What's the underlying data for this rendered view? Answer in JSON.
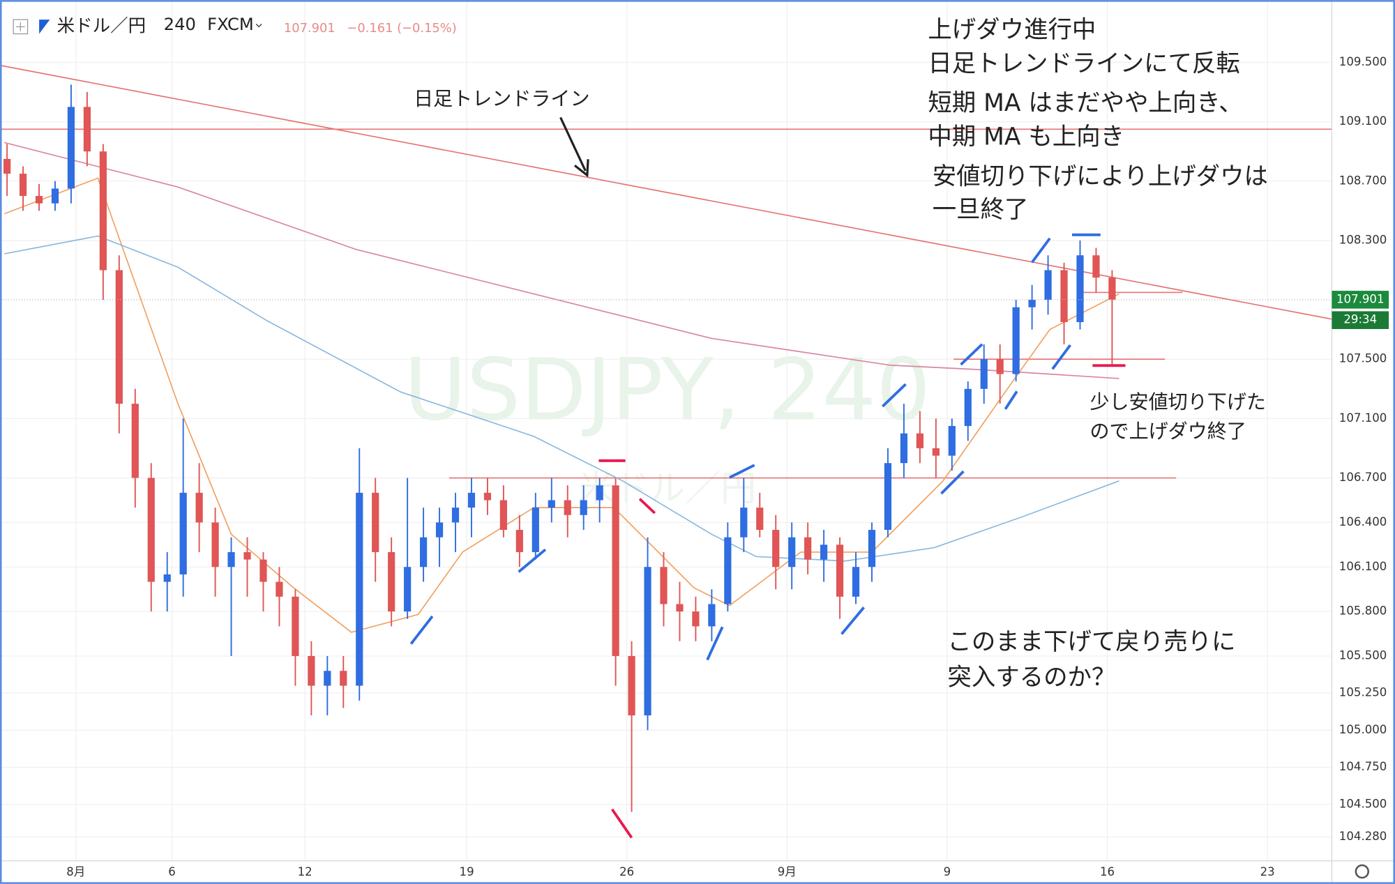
{
  "chart_data": {
    "type": "candlestick",
    "header": {
      "symbol": "米ドル／円",
      "interval": "240",
      "exchange": "FXCM",
      "price": "107.901",
      "change": "−0.161 (−0.15%)"
    },
    "watermark": {
      "main": "USDJPY, 240",
      "sub": "米ドル／円"
    },
    "up_color": "#2f6de1",
    "down_color": "#e05555",
    "open": [
      108.85,
      108.75,
      108.6,
      108.55,
      108.65,
      109.2,
      108.9,
      108.1,
      107.2,
      106.7,
      106.0,
      106.05,
      106.6,
      106.4,
      106.1,
      106.2,
      106.15,
      106.0,
      105.9,
      105.5,
      105.3,
      105.4,
      105.3,
      106.6,
      106.2,
      105.8,
      106.1,
      106.3,
      106.4,
      106.5,
      106.6,
      106.55,
      106.35,
      106.2,
      106.5,
      106.55,
      106.45,
      106.55,
      106.65,
      105.5,
      105.1,
      106.1,
      105.85,
      105.8,
      105.7,
      105.85,
      106.3,
      106.5,
      106.35,
      106.1,
      106.3,
      106.15,
      106.25,
      105.9,
      106.1,
      106.35,
      106.8,
      107.0,
      106.9,
      106.85,
      107.05,
      107.3,
      107.5,
      107.4,
      107.85,
      107.9,
      108.1,
      107.75,
      108.2,
      108.05
    ],
    "high": [
      108.95,
      108.8,
      108.68,
      108.7,
      109.35,
      109.3,
      108.95,
      108.2,
      107.3,
      106.8,
      106.2,
      107.1,
      106.8,
      106.5,
      106.3,
      106.3,
      106.2,
      106.1,
      105.95,
      105.6,
      105.5,
      105.5,
      106.9,
      106.7,
      106.3,
      106.7,
      106.5,
      106.5,
      106.6,
      106.7,
      106.7,
      106.65,
      106.45,
      106.6,
      106.7,
      106.65,
      106.65,
      106.7,
      106.7,
      105.6,
      106.3,
      106.2,
      106.0,
      105.9,
      105.95,
      106.4,
      106.7,
      106.6,
      106.45,
      106.4,
      106.4,
      106.35,
      106.3,
      106.2,
      106.4,
      106.9,
      107.2,
      107.15,
      107.1,
      107.1,
      107.35,
      107.6,
      107.6,
      107.9,
      108.0,
      108.2,
      108.15,
      108.3,
      108.25,
      108.1
    ],
    "low": [
      108.6,
      108.5,
      108.5,
      108.5,
      108.55,
      108.8,
      107.9,
      107.0,
      106.5,
      105.8,
      105.8,
      105.9,
      106.2,
      105.9,
      105.5,
      105.9,
      105.8,
      105.7,
      105.3,
      105.1,
      105.1,
      105.15,
      105.2,
      106.0,
      105.7,
      105.75,
      106.0,
      106.1,
      106.2,
      106.3,
      106.45,
      106.3,
      106.1,
      106.15,
      106.4,
      106.3,
      106.35,
      106.4,
      105.3,
      104.45,
      105.0,
      105.7,
      105.6,
      105.6,
      105.6,
      105.8,
      106.2,
      106.3,
      105.95,
      105.95,
      106.05,
      106.0,
      105.75,
      105.85,
      106.0,
      106.3,
      106.7,
      106.8,
      106.7,
      106.75,
      106.95,
      107.2,
      107.2,
      107.35,
      107.7,
      107.8,
      107.6,
      107.7,
      107.95,
      107.45
    ],
    "close": [
      108.75,
      108.6,
      108.55,
      108.65,
      109.2,
      108.9,
      108.1,
      107.2,
      106.7,
      106.0,
      106.05,
      106.6,
      106.4,
      106.1,
      106.2,
      106.15,
      106.0,
      105.9,
      105.5,
      105.3,
      105.4,
      105.3,
      106.6,
      106.2,
      105.8,
      106.1,
      106.3,
      106.4,
      106.5,
      106.6,
      106.55,
      106.35,
      106.2,
      106.5,
      106.55,
      106.45,
      106.55,
      106.65,
      105.5,
      105.1,
      106.1,
      105.85,
      105.8,
      105.7,
      105.85,
      106.3,
      106.5,
      106.35,
      106.1,
      106.3,
      106.15,
      106.25,
      105.9,
      106.1,
      106.35,
      106.8,
      107.0,
      106.9,
      106.85,
      107.05,
      107.3,
      107.5,
      107.4,
      107.85,
      107.9,
      108.1,
      107.75,
      108.2,
      108.05,
      107.901
    ],
    "series": [
      {
        "color": "#f0a060",
        "x": [
          -0.17,
          5.67,
          10.67,
          14,
          17.89,
          21.5,
          25.67,
          28.44,
          32.89,
          37.89,
          42.89,
          45.11,
          49.56,
          54,
          58.44,
          62.33,
          65.11,
          69.44
        ],
        "values": [
          108.48,
          108.72,
          107.2,
          106.32,
          105.96,
          105.66,
          105.78,
          106.2,
          106.5,
          106.5,
          105.96,
          105.84,
          106.2,
          106.2,
          106.68,
          107.28,
          107.7,
          107.94
        ]
      },
      {
        "color": "#d9869f",
        "x": [
          -0.17,
          10.67,
          21.78,
          32.89,
          44,
          55.11,
          60.67,
          69.44
        ],
        "values": [
          108.96,
          108.66,
          108.24,
          107.94,
          107.64,
          107.46,
          107.43,
          107.37
        ]
      },
      {
        "color": "#8ab8de",
        "x": [
          -0.17,
          5.67,
          10.67,
          16.22,
          24.56,
          32.89,
          38.44,
          44,
          46.78,
          52.33,
          57.89,
          63.44,
          69.44
        ],
        "values": [
          108.21,
          108.33,
          108.12,
          107.76,
          107.28,
          106.98,
          106.68,
          106.32,
          106.17,
          106.14,
          106.23,
          106.44,
          106.68
        ]
      }
    ],
    "lines": [
      {
        "color": "#e57373",
        "x": [
          -0.44,
          82.72
        ],
        "values": [
          109.05,
          109.05
        ]
      },
      {
        "color": "#e57373",
        "x": [
          -0.44,
          82.72
        ],
        "values": [
          109.48,
          107.77
        ]
      },
      {
        "color": "#e57373",
        "x": [
          27.6,
          73
        ],
        "values": [
          106.7,
          106.7
        ]
      },
      {
        "color": "#e57373",
        "x": [
          59.1,
          72.3
        ],
        "values": [
          107.5,
          107.5
        ]
      },
      {
        "color": "#e57373",
        "x": [
          67.1,
          73.4
        ],
        "values": [
          107.95,
          107.95
        ]
      }
    ],
    "last_price": {
      "value": 107.901,
      "label": "107.901"
    },
    "countdown": "29:34",
    "xlim": [
      -0.44,
      82.72
    ],
    "ylim": [
      104.12,
      109.92
    ],
    "xticks": [
      {
        "value": 4.3,
        "label": "8月"
      },
      {
        "value": 10.3,
        "label": "6"
      },
      {
        "value": 18.6,
        "label": "12"
      },
      {
        "value": 28.7,
        "label": "19"
      },
      {
        "value": 38.7,
        "label": "26"
      },
      {
        "value": 48.7,
        "label": "9月"
      },
      {
        "value": 58.7,
        "label": "9"
      },
      {
        "value": 68.7,
        "label": "16"
      },
      {
        "value": 78.7,
        "label": "23"
      }
    ],
    "yticks": [
      {
        "value": 109.5,
        "label": "109.500"
      },
      {
        "value": 109.1,
        "label": "109.100"
      },
      {
        "value": 108.7,
        "label": "108.700"
      },
      {
        "value": 108.3,
        "label": "108.300"
      },
      {
        "value": 107.5,
        "label": "107.500"
      },
      {
        "value": 107.1,
        "label": "107.100"
      },
      {
        "value": 106.7,
        "label": "106.700"
      },
      {
        "value": 106.4,
        "label": "106.400"
      },
      {
        "value": 106.1,
        "label": "106.100"
      },
      {
        "value": 105.8,
        "label": "105.800"
      },
      {
        "value": 105.5,
        "label": "105.500"
      },
      {
        "value": 105.25,
        "label": "105.250"
      },
      {
        "value": 105,
        "label": "105.000"
      },
      {
        "value": 104.75,
        "label": "104.750"
      },
      {
        "value": 104.5,
        "label": "104.500"
      },
      {
        "value": 104.28,
        "label": "104.280"
      }
    ],
    "grid": true,
    "annotations": [
      "上げダウ進行中",
      "日足トレンドラインにて反転",
      "短期 MA はまだやや上向き、",
      "中期 MA も上向き",
      "安値切り下げにより上げダウは",
      "一旦終了",
      "日足トレンドライン",
      "少し安値切り下げた",
      "ので上げダウ終了",
      "このまま下げて戻り売りに",
      "突入するのか？"
    ]
  }
}
